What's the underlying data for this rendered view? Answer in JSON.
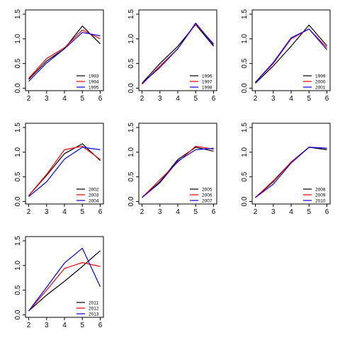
{
  "chart_data": [
    {
      "type": "line",
      "x": [
        2,
        3,
        4,
        5,
        6
      ],
      "xlim": [
        2,
        6
      ],
      "ylim": [
        0,
        1.5
      ],
      "xticks": [
        "2",
        "3",
        "4",
        "5",
        "6"
      ],
      "yticks": [
        "0.0",
        "0.5",
        "1.0",
        "1.5"
      ],
      "grid": false,
      "legend_position": "bottom-right",
      "series": [
        {
          "name": "1993",
          "color": "#000000",
          "values": [
            0.18,
            0.55,
            0.8,
            1.26,
            0.9
          ]
        },
        {
          "name": "1994",
          "color": "#ff0000",
          "values": [
            0.2,
            0.6,
            0.82,
            1.18,
            1.0
          ]
        },
        {
          "name": "1995",
          "color": "#0000ff",
          "values": [
            0.14,
            0.51,
            0.8,
            1.13,
            1.06
          ]
        }
      ]
    },
    {
      "type": "line",
      "x": [
        2,
        3,
        4,
        5,
        6
      ],
      "xlim": [
        2,
        6
      ],
      "ylim": [
        0,
        1.5
      ],
      "xticks": [
        "2",
        "3",
        "4",
        "5",
        "6"
      ],
      "yticks": [
        "0.0",
        "0.5",
        "1.0",
        "1.5"
      ],
      "grid": false,
      "legend_position": "bottom-right",
      "series": [
        {
          "name": "1996",
          "color": "#000000",
          "values": [
            0.1,
            0.5,
            0.85,
            1.29,
            0.85
          ]
        },
        {
          "name": "1997",
          "color": "#ff0000",
          "values": [
            0.08,
            0.45,
            0.8,
            1.3,
            0.9
          ]
        },
        {
          "name": "1998",
          "color": "#0000ff",
          "values": [
            0.1,
            0.42,
            0.8,
            1.32,
            0.88
          ]
        }
      ]
    },
    {
      "type": "line",
      "x": [
        2,
        3,
        4,
        5,
        6
      ],
      "xlim": [
        2,
        6
      ],
      "ylim": [
        0,
        1.5
      ],
      "xticks": [
        "2",
        "3",
        "4",
        "5",
        "6"
      ],
      "yticks": [
        "0.0",
        "0.5",
        "1.0",
        "1.5"
      ],
      "grid": false,
      "legend_position": "bottom-right",
      "series": [
        {
          "name": "1999",
          "color": "#000000",
          "values": [
            0.1,
            0.45,
            0.85,
            1.28,
            0.86
          ]
        },
        {
          "name": "2000",
          "color": "#ff0000",
          "values": [
            0.12,
            0.5,
            1.0,
            1.2,
            0.82
          ]
        },
        {
          "name": "2001",
          "color": "#0000ff",
          "values": [
            0.12,
            0.52,
            1.02,
            1.2,
            0.78
          ]
        }
      ]
    },
    {
      "type": "line",
      "x": [
        2,
        3,
        4,
        5,
        6
      ],
      "xlim": [
        2,
        6
      ],
      "ylim": [
        0,
        1.5
      ],
      "xticks": [
        "2",
        "3",
        "4",
        "5",
        "6"
      ],
      "yticks": [
        "0.0",
        "0.5",
        "1.0",
        "1.5"
      ],
      "grid": false,
      "legend_position": "bottom-right",
      "series": [
        {
          "name": "2002",
          "color": "#000000",
          "values": [
            0.12,
            0.53,
            0.97,
            1.17,
            0.83
          ]
        },
        {
          "name": "2003",
          "color": "#ff0000",
          "values": [
            0.12,
            0.55,
            1.05,
            1.12,
            0.85
          ]
        },
        {
          "name": "2004",
          "color": "#0000ff",
          "values": [
            0.1,
            0.4,
            0.86,
            1.1,
            1.05
          ]
        }
      ]
    },
    {
      "type": "line",
      "x": [
        2,
        3,
        4,
        5,
        6
      ],
      "xlim": [
        2,
        6
      ],
      "ylim": [
        0,
        1.5
      ],
      "xticks": [
        "2",
        "3",
        "4",
        "5",
        "6"
      ],
      "yticks": [
        "0.0",
        "0.5",
        "1.0",
        "1.5"
      ],
      "grid": false,
      "legend_position": "bottom-right",
      "series": [
        {
          "name": "2005",
          "color": "#000000",
          "values": [
            0.08,
            0.4,
            0.85,
            1.1,
            1.02
          ]
        },
        {
          "name": "2006",
          "color": "#ff0000",
          "values": [
            0.08,
            0.44,
            0.8,
            1.12,
            1.06
          ]
        },
        {
          "name": "2007",
          "color": "#0000ff",
          "values": [
            0.08,
            0.38,
            0.82,
            1.05,
            1.08
          ]
        }
      ]
    },
    {
      "type": "line",
      "x": [
        2,
        3,
        4,
        5,
        6
      ],
      "xlim": [
        2,
        6
      ],
      "ylim": [
        0,
        1.5
      ],
      "xticks": [
        "2",
        "3",
        "4",
        "5",
        "6"
      ],
      "yticks": [
        "0.0",
        "0.5",
        "1.0",
        "1.5"
      ],
      "grid": false,
      "legend_position": "bottom-right",
      "series": [
        {
          "name": "2008",
          "color": "#000000",
          "values": [
            0.08,
            0.4,
            0.8,
            1.1,
            1.05
          ]
        },
        {
          "name": "2009",
          "color": "#ff0000",
          "values": [
            0.08,
            0.42,
            0.8,
            1.1,
            1.08
          ]
        },
        {
          "name": "2010",
          "color": "#0000ff",
          "values": [
            0.08,
            0.35,
            0.78,
            1.1,
            1.08
          ]
        }
      ]
    },
    {
      "type": "line",
      "x": [
        2,
        3,
        4,
        5,
        6
      ],
      "xlim": [
        2,
        6
      ],
      "ylim": [
        0,
        1.5
      ],
      "xticks": [
        "2",
        "3",
        "4",
        "5",
        "6"
      ],
      "yticks": [
        "0.0",
        "0.5",
        "1.0",
        "1.5"
      ],
      "grid": false,
      "legend_position": "bottom-right",
      "series": [
        {
          "name": "2011",
          "color": "#000000",
          "values": [
            0.08,
            0.4,
            0.68,
            0.98,
            1.3
          ]
        },
        {
          "name": "2012",
          "color": "#ff0000",
          "values": [
            0.08,
            0.5,
            0.94,
            1.06,
            0.98
          ]
        },
        {
          "name": "2013",
          "color": "#0000ff",
          "values": [
            0.08,
            0.56,
            1.05,
            1.35,
            0.57
          ]
        }
      ]
    }
  ]
}
